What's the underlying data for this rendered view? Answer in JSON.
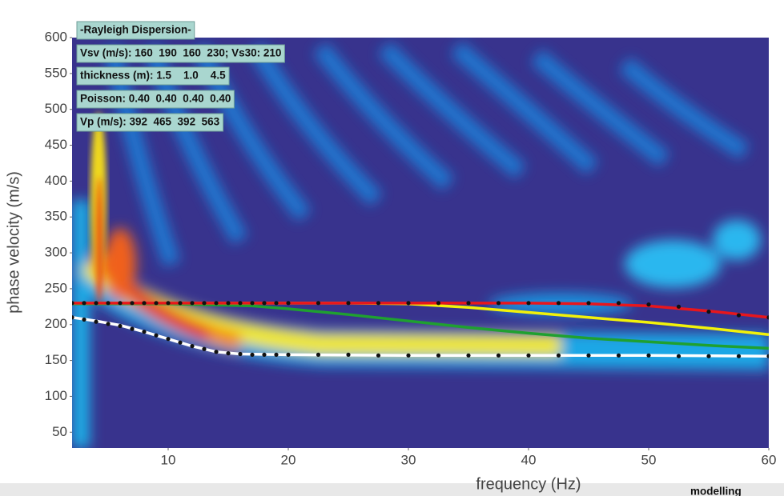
{
  "chart_data": {
    "type": "line",
    "xlabel": "frequency (Hz)",
    "ylabel": "phase velocity (m/s)",
    "xlim": [
      2,
      60
    ],
    "ylim": [
      28,
      600
    ],
    "xticks": [
      10,
      20,
      30,
      40,
      50,
      60
    ],
    "yticks": [
      50,
      100,
      150,
      200,
      250,
      300,
      350,
      400,
      450,
      500,
      550,
      600
    ],
    "grid": false,
    "annotations": [
      "-Rayleigh Dispersion-",
      "Vsv (m/s): 160  190  160  230; Vs30: 210",
      "thickness (m): 1.5    1.0    4.5",
      "Poisson: 0.40  0.40  0.40  0.40",
      "Vp (m/s): 392  465  392  563"
    ],
    "footer": "modelling",
    "series": [
      {
        "color": "#ffffff",
        "style": "line",
        "x": [
          2,
          4,
          6,
          8,
          10,
          12,
          14,
          16,
          20,
          30,
          40,
          50,
          60
        ],
        "values": [
          210,
          205,
          199,
          190,
          180,
          170,
          162,
          159,
          158,
          157,
          157,
          157,
          156
        ]
      },
      {
        "color": "#1fa030",
        "style": "line",
        "x": [
          2,
          10,
          17,
          20,
          25,
          30,
          35,
          40,
          45,
          50,
          55,
          60
        ],
        "values": [
          229,
          229,
          226,
          222,
          214,
          205,
          196,
          188,
          181,
          176,
          171,
          167
        ]
      },
      {
        "color": "#f2f20a",
        "style": "line",
        "x": [
          2,
          20,
          25,
          30,
          35,
          40,
          45,
          50,
          55,
          60
        ],
        "values": [
          230,
          230,
          230,
          229,
          224,
          217,
          210,
          203,
          195,
          186
        ]
      },
      {
        "color": "#e8161c",
        "style": "line",
        "x": [
          2,
          30,
          40,
          45,
          50,
          55,
          60
        ],
        "values": [
          230,
          230,
          230,
          229,
          226,
          219,
          210
        ]
      },
      {
        "color": "#111111",
        "style": "dots",
        "x": [
          2,
          3,
          4,
          5,
          6,
          7,
          8,
          9,
          10,
          11,
          12,
          13,
          14,
          15,
          16,
          17,
          18,
          19,
          20,
          22.5,
          25,
          27.5,
          30,
          32.5,
          35,
          37.5,
          40,
          42.5,
          45,
          47.5,
          50,
          52.5,
          55,
          57.5,
          60
        ],
        "values": [
          230,
          230,
          230,
          230,
          230,
          230,
          230,
          230,
          230,
          230,
          230,
          230,
          230,
          230,
          230,
          230,
          230,
          230,
          230,
          230,
          230,
          230,
          230,
          230,
          230,
          230,
          230,
          230,
          230,
          230,
          228,
          225,
          218,
          213,
          210
        ]
      },
      {
        "color": "#111111",
        "style": "dots",
        "x": [
          2,
          3,
          4,
          5,
          6,
          7,
          8,
          9,
          10,
          11,
          12,
          13,
          14,
          15,
          16,
          17,
          18,
          19,
          20,
          22.5,
          25,
          27.5,
          30,
          32.5,
          35,
          37.5,
          40,
          42.5,
          45,
          47.5,
          50,
          52.5,
          55,
          57.5,
          60
        ],
        "values": [
          210,
          207,
          204,
          201,
          198,
          194,
          190,
          185,
          180,
          175,
          170,
          166,
          162,
          160,
          159,
          158,
          158,
          158,
          158,
          158,
          158,
          157,
          157,
          157,
          157,
          157,
          157,
          157,
          157,
          157,
          157,
          156,
          156,
          156,
          156
        ]
      }
    ]
  }
}
